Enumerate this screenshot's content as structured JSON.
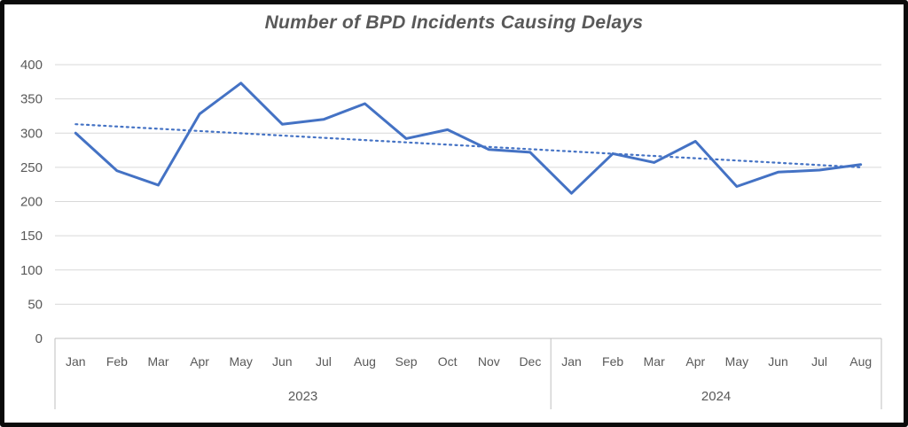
{
  "title": "Number of BPD Incidents Causing Delays",
  "chart_data": {
    "type": "line",
    "x": [
      "Jan",
      "Feb",
      "Mar",
      "Apr",
      "May",
      "Jun",
      "Jul",
      "Aug",
      "Sep",
      "Oct",
      "Nov",
      "Dec",
      "Jan",
      "Feb",
      "Mar",
      "Apr",
      "May",
      "Jun",
      "Jul",
      "Aug"
    ],
    "groups": [
      {
        "label": "2023",
        "span": 12
      },
      {
        "label": "2024",
        "span": 8
      }
    ],
    "series": [
      {
        "name": "Incidents",
        "style": "solid",
        "values": [
          300,
          245,
          224,
          328,
          373,
          313,
          320,
          343,
          292,
          305,
          276,
          272,
          212,
          270,
          257,
          288,
          222,
          243,
          246,
          254
        ]
      },
      {
        "name": "Linear trend",
        "style": "dotted",
        "start": 313,
        "end": 250
      }
    ],
    "title": "Number of BPD Incidents Causing Delays",
    "xlabel": "",
    "ylabel": "",
    "ylim": [
      0,
      400
    ],
    "yticks": [
      0,
      50,
      100,
      150,
      200,
      250,
      300,
      350,
      400
    ],
    "grid": true,
    "legend": "none",
    "colors": {
      "line": "#4472C4",
      "trend": "#4472C4",
      "grid": "#d9d9d9",
      "axis": "#bfbfbf",
      "text": "#595959"
    }
  }
}
